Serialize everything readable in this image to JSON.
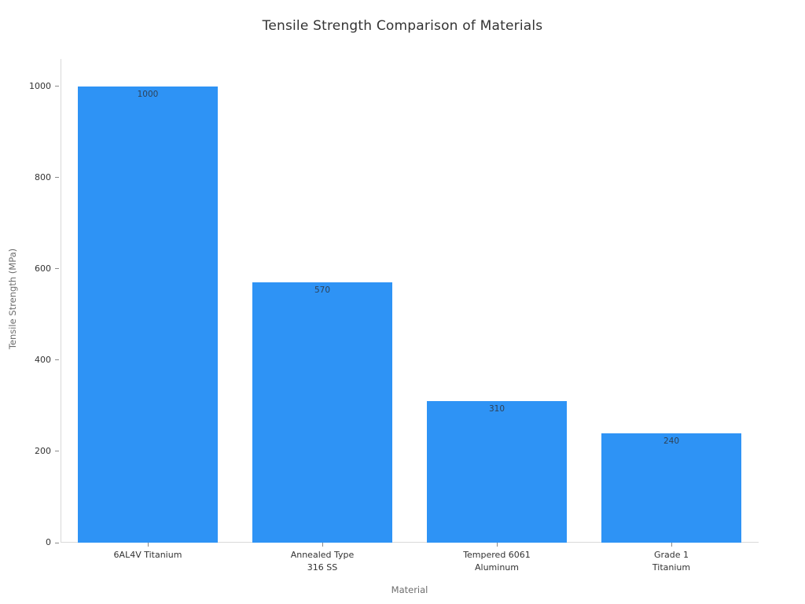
{
  "chart_data": {
    "type": "bar",
    "title": "Tensile Strength Comparison of Materials",
    "xlabel": "Material",
    "ylabel": "Tensile Strength (MPa)",
    "categories": [
      "6AL4V Titanium",
      "Annealed Type 316 SS",
      "Tempered 6061 Aluminum",
      "Grade 1 Titanium"
    ],
    "category_lines": [
      [
        "6AL4V Titanium"
      ],
      [
        "Annealed Type",
        "316 SS"
      ],
      [
        "Tempered 6061",
        "Aluminum"
      ],
      [
        "Grade 1",
        "Titanium"
      ]
    ],
    "values": [
      1000,
      570,
      310,
      240
    ],
    "bar_labels": [
      "1000",
      "570",
      "310",
      "240"
    ],
    "yticks": [
      0,
      200,
      400,
      600,
      800,
      1000
    ],
    "ylim": [
      0,
      1060
    ],
    "grid": false,
    "legend": "none",
    "bar_color": "#2e93f5",
    "value_label_color": "#2e4257",
    "axis_line_color": "#d9d9d9",
    "tick_color": "#8a8a8a"
  }
}
